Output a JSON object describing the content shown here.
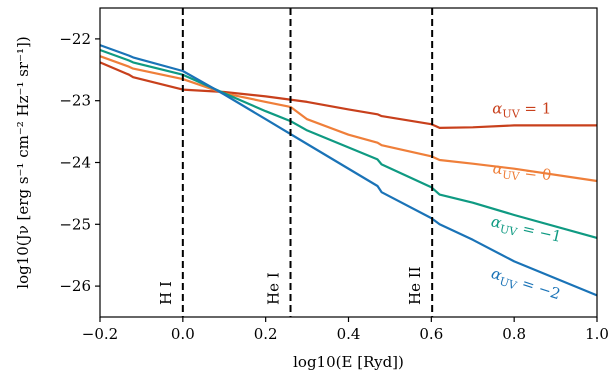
{
  "chart_data": {
    "type": "line",
    "xlabel": "log10(E [Ryd])",
    "ylabel": "log10(Jν [erg s⁻¹ cm⁻² Hz⁻¹ sr⁻¹])",
    "xlim": [
      -0.2,
      1.0
    ],
    "ylim": [
      -26.5,
      -21.5
    ],
    "xticks": [
      "−0.2",
      "0.0",
      "0.2",
      "0.4",
      "0.6",
      "0.8",
      "1.0"
    ],
    "yticks": [
      "−22",
      "−23",
      "−24",
      "−25",
      "−26"
    ],
    "grid": false,
    "vertical_lines": [
      {
        "x": 0.0,
        "label": "H I"
      },
      {
        "x": 0.26,
        "label": "He I"
      },
      {
        "x": 0.602,
        "label": "He II"
      }
    ],
    "series": [
      {
        "name": "αUV = 1",
        "label_prefix": "α",
        "label_sub": "UV",
        "label_suffix": " = 1",
        "color": "#c8401c",
        "x": [
          -0.2,
          -0.13,
          -0.12,
          0.0,
          0.1,
          0.2,
          0.3,
          0.4,
          0.47,
          0.48,
          0.6,
          0.61,
          0.62,
          0.7,
          0.8,
          1.0
        ],
        "y": [
          -22.38,
          -22.58,
          -22.62,
          -22.82,
          -22.86,
          -22.93,
          -23.02,
          -23.14,
          -23.22,
          -23.25,
          -23.38,
          -23.41,
          -23.44,
          -23.43,
          -23.4,
          -23.4
        ]
      },
      {
        "name": "αUV = 0",
        "label_prefix": "α",
        "label_sub": "UV",
        "label_suffix": " = 0",
        "color": "#ef7f3a",
        "x": [
          -0.2,
          -0.13,
          -0.12,
          0.0,
          0.1,
          0.2,
          0.26,
          0.3,
          0.4,
          0.47,
          0.48,
          0.6,
          0.62,
          0.7,
          0.8,
          1.0
        ],
        "y": [
          -22.28,
          -22.45,
          -22.48,
          -22.65,
          -22.88,
          -23.02,
          -23.1,
          -23.3,
          -23.55,
          -23.68,
          -23.72,
          -23.9,
          -23.96,
          -24.02,
          -24.1,
          -24.3
        ]
      },
      {
        "name": "αUV = −1",
        "label_prefix": "α",
        "label_sub": "UV",
        "label_suffix": " = −1",
        "color": "#0f9a82",
        "x": [
          -0.2,
          -0.13,
          -0.12,
          0.0,
          0.1,
          0.2,
          0.26,
          0.3,
          0.47,
          0.48,
          0.6,
          0.62,
          0.7,
          0.8,
          1.0
        ],
        "y": [
          -22.18,
          -22.35,
          -22.38,
          -22.58,
          -22.88,
          -23.17,
          -23.33,
          -23.48,
          -23.95,
          -24.03,
          -24.4,
          -24.52,
          -24.65,
          -24.85,
          -25.22
        ]
      },
      {
        "name": "αUV = −2",
        "label_prefix": "α",
        "label_sub": "UV",
        "label_suffix": " = −2",
        "color": "#1a73b7",
        "x": [
          -0.2,
          -0.13,
          -0.12,
          0.0,
          0.1,
          0.2,
          0.3,
          0.47,
          0.48,
          0.6,
          0.62,
          0.7,
          0.8,
          1.0
        ],
        "y": [
          -22.1,
          -22.27,
          -22.3,
          -22.52,
          -22.9,
          -23.3,
          -23.7,
          -24.38,
          -24.48,
          -24.9,
          -25.0,
          -25.25,
          -25.6,
          -26.15
        ]
      }
    ]
  }
}
